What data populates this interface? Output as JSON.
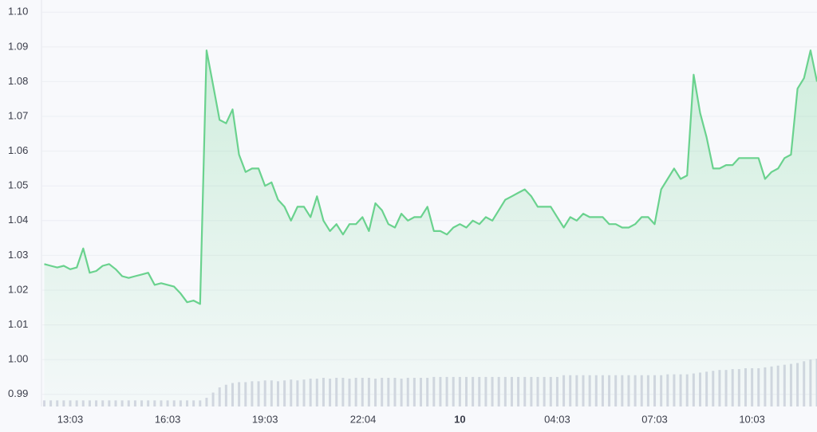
{
  "chart_data": {
    "type": "area",
    "series": [
      {
        "color": "#6ad28e",
        "values": [
          1.0275,
          1.027,
          1.0265,
          1.027,
          1.026,
          1.0265,
          1.032,
          1.025,
          1.0255,
          1.027,
          1.0275,
          1.026,
          1.024,
          1.0235,
          1.024,
          1.0245,
          1.025,
          1.0215,
          1.022,
          1.0215,
          1.021,
          1.019,
          1.0165,
          1.017,
          1.016,
          1.089,
          1.079,
          1.069,
          1.068,
          1.072,
          1.059,
          1.054,
          1.055,
          1.055,
          1.05,
          1.051,
          1.046,
          1.044,
          1.04,
          1.044,
          1.044,
          1.041,
          1.047,
          1.04,
          1.037,
          1.039,
          1.036,
          1.039,
          1.039,
          1.041,
          1.037,
          1.045,
          1.043,
          1.039,
          1.038,
          1.042,
          1.04,
          1.041,
          1.041,
          1.044,
          1.037,
          1.037,
          1.036,
          1.038,
          1.039,
          1.038,
          1.04,
          1.039,
          1.041,
          1.04,
          1.043,
          1.046,
          1.047,
          1.048,
          1.049,
          1.047,
          1.044,
          1.044,
          1.044,
          1.041,
          1.038,
          1.041,
          1.04,
          1.042,
          1.041,
          1.041,
          1.041,
          1.039,
          1.039,
          1.038,
          1.038,
          1.039,
          1.041,
          1.041,
          1.039,
          1.049,
          1.052,
          1.055,
          1.052,
          1.053,
          1.082,
          1.071,
          1.064,
          1.055,
          1.055,
          1.056,
          1.056,
          1.058,
          1.058,
          1.058,
          1.058,
          1.052,
          1.054,
          1.055,
          1.058,
          1.059,
          1.078,
          1.081,
          1.089,
          1.08
        ]
      }
    ],
    "volume": [
      7,
      7,
      7,
      7,
      7,
      7,
      7,
      7,
      7,
      7,
      7,
      7,
      7,
      7,
      7,
      7,
      7,
      7,
      7,
      7,
      7,
      7,
      7,
      7,
      7,
      10,
      16,
      22,
      25,
      27,
      28,
      28,
      29,
      29,
      30,
      30,
      29,
      30,
      31,
      30,
      31,
      32,
      32,
      33,
      32,
      33,
      33,
      32,
      33,
      33,
      33,
      32,
      33,
      33,
      33,
      32,
      33,
      33,
      33,
      33,
      34,
      34,
      34,
      34,
      34,
      34,
      34,
      34,
      34,
      34,
      34,
      34,
      34,
      34,
      34,
      34,
      34,
      34,
      34,
      34,
      36,
      36,
      36,
      36,
      36,
      36,
      36,
      36,
      36,
      36,
      36,
      36,
      36,
      36,
      36,
      36,
      37,
      37,
      37,
      37,
      38,
      39,
      40,
      41,
      42,
      42,
      43,
      43,
      44,
      44,
      44,
      45,
      46,
      47,
      48,
      49,
      50,
      52,
      54,
      55
    ],
    "x": [
      -0.8,
      -0.6,
      -0.4,
      -0.2,
      0,
      0.2,
      0.4,
      0.6,
      0.8,
      1,
      1.2,
      1.4,
      1.6,
      1.8,
      2,
      2.2,
      2.4,
      2.6,
      2.8,
      3,
      3.2,
      3.4,
      3.6,
      3.8,
      4,
      4.2,
      4.4,
      4.6,
      4.8,
      5,
      5.2,
      5.4,
      5.6,
      5.8,
      6,
      6.2,
      6.4,
      6.6,
      6.8,
      7,
      7.2,
      7.4,
      7.6,
      7.8,
      8,
      8.2,
      8.4,
      8.6,
      8.8,
      9,
      9.2,
      9.4,
      9.6,
      9.8,
      10,
      10.2,
      10.4,
      10.6,
      10.8,
      11,
      11.2,
      11.4,
      11.6,
      11.8,
      12,
      12.2,
      12.4,
      12.6,
      12.8,
      13,
      13.2,
      13.4,
      13.6,
      13.8,
      14,
      14.2,
      14.4,
      14.6,
      14.8,
      15,
      15.2,
      15.4,
      15.6,
      15.8,
      16,
      16.2,
      16.4,
      16.6,
      16.8,
      17,
      17.2,
      17.4,
      17.6,
      17.8,
      18,
      18.2,
      18.4,
      18.6,
      18.8,
      19,
      19.2,
      19.4,
      19.6,
      19.8,
      20,
      20.2,
      20.4,
      20.6,
      20.8,
      21,
      21.2,
      21.4,
      21.6,
      21.8,
      22,
      22.2,
      22.4,
      22.6,
      22.8,
      23
    ],
    "xlim": [
      -0.885,
      23
    ],
    "xticks": [
      {
        "value": 0,
        "label": "13:03"
      },
      {
        "value": 3,
        "label": "16:03"
      },
      {
        "value": 6,
        "label": "19:03"
      },
      {
        "value": 9.02,
        "label": "22:04"
      },
      {
        "value": 12,
        "label": "10"
      },
      {
        "value": 15,
        "label": "04:03"
      },
      {
        "value": 18,
        "label": "07:03"
      },
      {
        "value": 21,
        "label": "10:03"
      }
    ],
    "ylim": [
      0.9865,
      1.1035
    ],
    "yticks": [
      {
        "value": 1.1,
        "label": "1.10"
      },
      1.09,
      1.08,
      1.07,
      1.06,
      1.05,
      1.04,
      1.03,
      1.02,
      1.01,
      {
        "value": 1.0,
        "label": "1.00"
      },
      0.99
    ],
    "grid": true
  }
}
